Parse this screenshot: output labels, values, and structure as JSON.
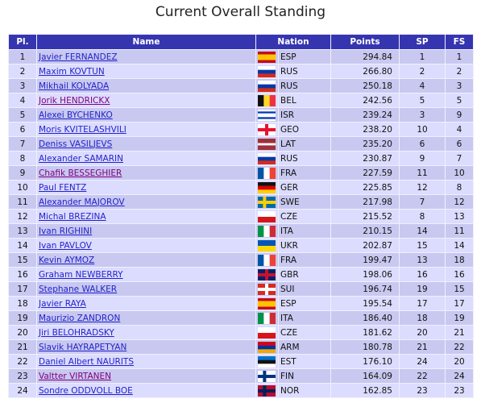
{
  "header": {
    "title": "Current Overall Standing"
  },
  "table": {
    "columns": [
      "Pl.",
      "Name",
      "Nation",
      "Points",
      "SP",
      "FS"
    ],
    "rows": [
      {
        "pl": "1",
        "name": "Javier FERNANDEZ",
        "nation": "ESP",
        "points": "294.84",
        "sp": "1",
        "fs": "1"
      },
      {
        "pl": "2",
        "name": "Maxim KOVTUN",
        "nation": "RUS",
        "points": "266.80",
        "sp": "2",
        "fs": "2"
      },
      {
        "pl": "3",
        "name": "Mikhail KOLYADA",
        "nation": "RUS",
        "points": "250.18",
        "sp": "4",
        "fs": "3"
      },
      {
        "pl": "4",
        "name": "Jorik HENDRICKX",
        "nation": "BEL",
        "points": "242.56",
        "sp": "5",
        "fs": "5",
        "link_color": "#800080"
      },
      {
        "pl": "5",
        "name": "Alexei BYCHENKO",
        "nation": "ISR",
        "points": "239.24",
        "sp": "3",
        "fs": "9"
      },
      {
        "pl": "6",
        "name": "Moris KVITELASHVILI",
        "nation": "GEO",
        "points": "238.20",
        "sp": "10",
        "fs": "4"
      },
      {
        "pl": "7",
        "name": "Deniss VASILJEVS",
        "nation": "LAT",
        "points": "235.20",
        "sp": "6",
        "fs": "6"
      },
      {
        "pl": "8",
        "name": "Alexander SAMARIN",
        "nation": "RUS",
        "points": "230.87",
        "sp": "9",
        "fs": "7"
      },
      {
        "pl": "9",
        "name": "Chafik BESSEGHIER",
        "nation": "FRA",
        "points": "227.59",
        "sp": "11",
        "fs": "10",
        "link_color": "#800080"
      },
      {
        "pl": "10",
        "name": "Paul FENTZ",
        "nation": "GER",
        "points": "225.85",
        "sp": "12",
        "fs": "8"
      },
      {
        "pl": "11",
        "name": "Alexander MAJOROV",
        "nation": "SWE",
        "points": "217.98",
        "sp": "7",
        "fs": "12"
      },
      {
        "pl": "12",
        "name": "Michal BREZINA",
        "nation": "CZE",
        "points": "215.52",
        "sp": "8",
        "fs": "13"
      },
      {
        "pl": "13",
        "name": "Ivan RIGHINI",
        "nation": "ITA",
        "points": "210.15",
        "sp": "14",
        "fs": "11"
      },
      {
        "pl": "14",
        "name": "Ivan PAVLOV",
        "nation": "UKR",
        "points": "202.87",
        "sp": "15",
        "fs": "14"
      },
      {
        "pl": "15",
        "name": "Kevin AYMOZ",
        "nation": "FRA",
        "points": "199.47",
        "sp": "13",
        "fs": "18"
      },
      {
        "pl": "16",
        "name": "Graham NEWBERRY",
        "nation": "GBR",
        "points": "198.06",
        "sp": "16",
        "fs": "16"
      },
      {
        "pl": "17",
        "name": "Stephane WALKER",
        "nation": "SUI",
        "points": "196.74",
        "sp": "19",
        "fs": "15"
      },
      {
        "pl": "18",
        "name": "Javier RAYA",
        "nation": "ESP",
        "points": "195.54",
        "sp": "17",
        "fs": "17"
      },
      {
        "pl": "19",
        "name": "Maurizio ZANDRON",
        "nation": "ITA",
        "points": "186.40",
        "sp": "18",
        "fs": "19"
      },
      {
        "pl": "20",
        "name": "Jiri BELOHRADSKY",
        "nation": "CZE",
        "points": "181.62",
        "sp": "20",
        "fs": "21"
      },
      {
        "pl": "21",
        "name": "Slavik HAYRAPETYAN",
        "nation": "ARM",
        "points": "180.78",
        "sp": "21",
        "fs": "22"
      },
      {
        "pl": "22",
        "name": "Daniel Albert NAURITS",
        "nation": "EST",
        "points": "176.10",
        "sp": "24",
        "fs": "20"
      },
      {
        "pl": "23",
        "name": "Valtter VIRTANEN",
        "nation": "FIN",
        "points": "164.09",
        "sp": "22",
        "fs": "24",
        "link_color": "#800080"
      },
      {
        "pl": "24",
        "name": "Sondre ODDVOLL BOE",
        "nation": "NOR",
        "points": "162.85",
        "sp": "23",
        "fs": "23"
      }
    ]
  }
}
